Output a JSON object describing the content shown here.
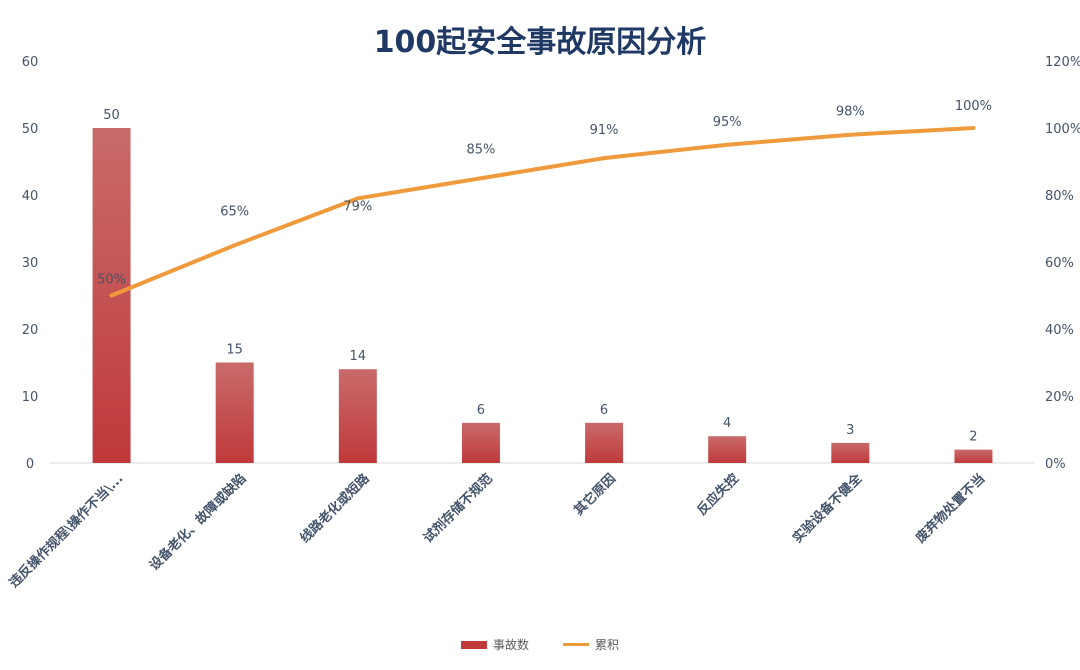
{
  "chart_data": {
    "type": "bar",
    "title": "100起安全事故原因分析",
    "categories": [
      "违反操作规程\\操作不当\\...",
      "设备老化、故障或缺陷",
      "线路老化或短路",
      "试剂存储不规范",
      "其它原因",
      "反应失控",
      "实验设备不健全",
      "废弃物处置不当"
    ],
    "series": [
      {
        "name": "事故数",
        "type": "bar",
        "axis": "left",
        "values": [
          50,
          15,
          14,
          6,
          6,
          4,
          3,
          2
        ],
        "labels": [
          "50",
          "15",
          "14",
          "6",
          "6",
          "4",
          "3",
          "2"
        ],
        "color": "#c0393a"
      },
      {
        "name": "累积",
        "type": "line",
        "axis": "right",
        "values": [
          50,
          65,
          79,
          85,
          91,
          95,
          98,
          100
        ],
        "labels": [
          "50%",
          "65%",
          "79%",
          "85%",
          "91%",
          "95%",
          "98%",
          "100%"
        ],
        "color": "#ef9a3c"
      }
    ],
    "y_left": {
      "min": 0,
      "max": 60,
      "ticks": [
        "0",
        "10",
        "20",
        "30",
        "40",
        "50",
        "60"
      ]
    },
    "y_right": {
      "min": 0,
      "max": 120,
      "ticks": [
        "0%",
        "20%",
        "40%",
        "60%",
        "80%",
        "100%",
        "120%"
      ]
    },
    "grid": false,
    "legend_position": "bottom",
    "colors": {
      "title": "#1f3864",
      "axis_text": "#44546a"
    }
  }
}
